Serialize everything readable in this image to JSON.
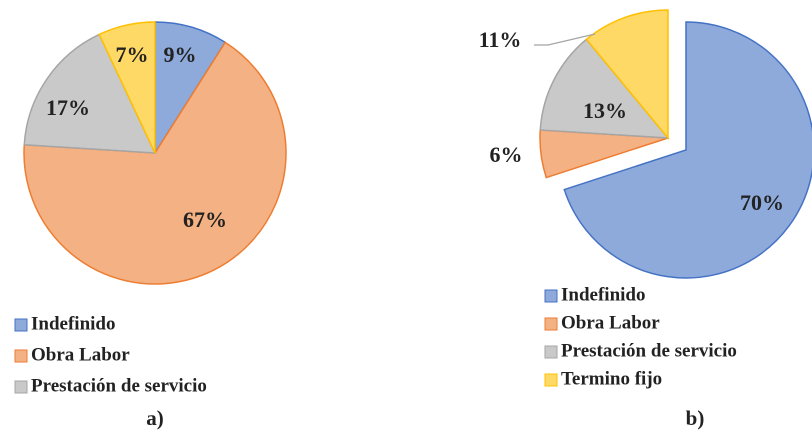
{
  "chart_data": [
    {
      "type": "pie",
      "caption": "a)",
      "categories": [
        "Indefinido",
        "Obra Labor",
        "Prestación de servicio",
        null
      ],
      "values": [
        9,
        67,
        17,
        7
      ],
      "value_labels": [
        "9%",
        "67%",
        "17%",
        "7%"
      ],
      "colors": [
        "#8eaadb",
        "#f4b183",
        "#c9c9c9",
        "#ffd966"
      ],
      "edge_colors": [
        "#4472c4",
        "#ed7d31",
        "#a5a5a5",
        "#ffc000"
      ]
    },
    {
      "type": "pie",
      "caption": "b)",
      "categories": [
        "Indefinido",
        "Obra Labor",
        "Prestación de servicio",
        "Termino fijo"
      ],
      "values": [
        70,
        6,
        13,
        11
      ],
      "value_labels": [
        "70%",
        "6%",
        "13%",
        "11%"
      ],
      "colors": [
        "#8eaadb",
        "#f4b183",
        "#c9c9c9",
        "#ffd966"
      ],
      "edge_colors": [
        "#4472c4",
        "#ed7d31",
        "#a5a5a5",
        "#ffc000"
      ]
    }
  ]
}
